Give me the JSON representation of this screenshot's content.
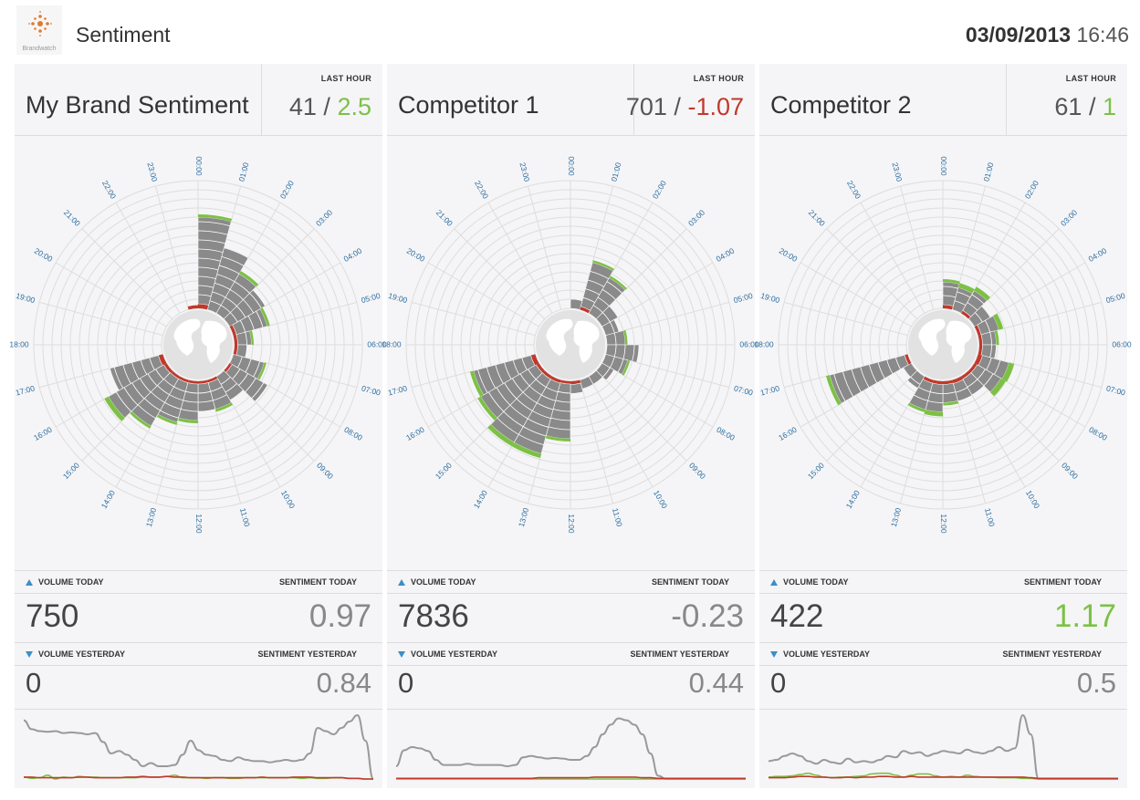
{
  "header": {
    "logo_text": "Brandwatch",
    "title": "Sentiment",
    "date": "03/09/2013",
    "time": "16:46"
  },
  "colors": {
    "positive": "#7cc144",
    "negative": "#c0392b",
    "neutral_bar": "#8a8a8a",
    "volume_line": "#999999",
    "accent": "#3a8fc9"
  },
  "hour_labels": [
    "00:00",
    "01:00",
    "02:00",
    "03:00",
    "04:00",
    "05:00",
    "06:00",
    "07:00",
    "08:00",
    "09:00",
    "10:00",
    "11:00",
    "12:00",
    "13:00",
    "14:00",
    "15:00",
    "16:00",
    "17:00",
    "18:00",
    "19:00",
    "20:00",
    "21:00",
    "22:00",
    "23:00"
  ],
  "panels": [
    {
      "title": "My Brand Sentiment",
      "last_hour_label": "LAST HOUR",
      "last_hour_volume": "41",
      "last_hour_sep": "/",
      "last_hour_sentiment": "2.5",
      "last_hour_sentiment_tone": "pos",
      "volume_today_label": "VOLUME TODAY",
      "sentiment_today_label": "SENTIMENT TODAY",
      "volume_today": "750",
      "sentiment_today": "0.97",
      "sentiment_today_tone": "neu",
      "volume_yesterday_label": "VOLUME YESTERDAY",
      "sentiment_yesterday_label": "SENTIMENT YESTERDAY",
      "volume_yesterday": "0",
      "sentiment_yesterday": "0.84",
      "radial": {
        "volume": [
          9.5,
          7,
          5,
          4.5,
          3.5,
          1.5,
          1,
          3.5,
          4.5,
          3,
          3,
          3,
          4,
          4.5,
          6,
          7,
          5.5,
          0,
          0,
          0,
          0,
          0,
          0,
          0
        ],
        "positive": [
          0.3,
          0,
          0.35,
          0,
          0.3,
          0.25,
          0,
          0.25,
          0,
          0,
          0.3,
          0,
          0.3,
          0.3,
          0.3,
          0.5,
          0,
          0,
          0,
          0,
          0,
          0,
          0,
          0
        ],
        "negative": [
          0.5,
          0,
          0,
          0,
          0.35,
          0.35,
          0.35,
          0,
          0.3,
          0,
          0.3,
          0.3,
          0.3,
          0.3,
          0.3,
          0.35,
          0.5,
          0,
          0,
          0,
          0,
          0,
          0,
          0.35
        ]
      },
      "sparkline": {
        "volume": [
          92,
          78,
          75,
          74,
          75,
          72,
          73,
          72,
          70,
          72,
          58,
          40,
          44,
          38,
          30,
          20,
          25,
          20,
          20,
          22,
          38,
          60,
          45,
          38,
          36,
          30,
          28,
          34,
          30,
          28,
          28,
          26,
          28,
          30,
          28,
          30,
          40,
          80,
          75,
          70,
          80,
          90,
          100,
          60,
          0
        ],
        "positive": [
          3,
          1,
          2,
          6,
          0,
          3,
          2,
          4,
          3,
          3,
          2,
          2,
          2,
          2,
          2,
          3,
          3,
          3,
          4,
          6,
          2,
          2,
          2,
          1,
          2,
          2,
          1,
          1,
          2,
          2,
          2,
          2,
          2,
          2,
          2,
          1,
          2,
          1,
          1,
          2,
          2,
          1,
          1,
          0,
          0
        ],
        "negative": [
          3,
          3,
          2,
          2,
          2,
          2,
          2,
          3,
          3,
          2,
          2,
          2,
          2,
          3,
          3,
          4,
          3,
          3,
          4,
          3,
          3,
          2,
          2,
          2,
          2,
          2,
          2,
          2,
          2,
          2,
          3,
          2,
          2,
          2,
          3,
          3,
          3,
          2,
          2,
          2,
          2,
          1,
          1,
          0,
          0
        ]
      }
    },
    {
      "title": "Competitor 1",
      "last_hour_label": "LAST HOUR",
      "last_hour_volume": "701",
      "last_hour_sep": "/",
      "last_hour_sentiment": "-1.07",
      "last_hour_sentiment_tone": "neg",
      "volume_today_label": "VOLUME TODAY",
      "sentiment_today_label": "SENTIMENT TODAY",
      "volume_today": "7836",
      "sentiment_today": "-0.23",
      "sentiment_today_tone": "neu",
      "volume_yesterday_label": "VOLUME YESTERDAY",
      "sentiment_yesterday_label": "SENTIMENT YESTERDAY",
      "volume_yesterday": "0",
      "sentiment_yesterday": "0.44",
      "radial": {
        "volume": [
          1,
          5,
          4.5,
          2,
          1.5,
          2,
          3.5,
          2.5,
          1.5,
          1,
          1,
          1,
          6,
          8,
          8,
          7,
          6.5,
          0,
          0,
          0,
          0,
          0,
          0,
          0
        ],
        "positive": [
          0,
          0.25,
          0.25,
          0,
          0,
          0.25,
          0,
          0.25,
          0,
          0,
          0,
          0,
          0.3,
          0.5,
          0.5,
          0.4,
          0.4,
          0,
          0,
          0,
          0,
          0,
          0,
          0
        ],
        "negative": [
          0,
          0.35,
          0,
          0,
          0,
          0,
          0,
          0,
          0,
          0,
          0,
          0.35,
          0.3,
          0.35,
          0.35,
          0.35,
          0.5,
          0,
          0,
          0,
          0,
          0,
          0,
          0
        ]
      },
      "sparkline": {
        "volume": [
          20,
          45,
          50,
          48,
          44,
          30,
          22,
          22,
          22,
          24,
          22,
          22,
          22,
          22,
          20,
          22,
          34,
          36,
          34,
          32,
          33,
          32,
          30,
          30,
          36,
          50,
          70,
          85,
          95,
          92,
          85,
          70,
          40,
          5,
          0,
          0,
          0,
          0,
          0,
          0,
          0,
          0,
          0,
          0,
          0
        ],
        "positive": [
          0,
          0,
          0,
          0,
          0,
          0,
          0,
          0,
          0,
          0,
          0,
          0,
          0,
          0,
          0,
          0,
          0,
          0,
          0,
          0,
          0,
          0,
          0,
          0,
          0,
          0,
          0,
          0,
          0,
          0,
          0,
          0,
          0,
          0,
          0,
          0,
          0,
          0,
          0,
          0,
          0,
          0,
          0,
          0,
          0
        ],
        "negative": [
          1,
          1,
          1,
          1,
          1,
          1,
          1,
          1,
          1,
          1,
          1,
          1,
          1,
          1,
          1,
          1,
          1,
          1,
          2,
          2,
          2,
          2,
          2,
          2,
          2,
          3,
          3,
          3,
          3,
          3,
          3,
          2,
          2,
          1,
          1,
          1,
          1,
          1,
          1,
          1,
          1,
          1,
          1,
          1,
          1
        ]
      }
    },
    {
      "title": "Competitor 2",
      "last_hour_label": "LAST HOUR",
      "last_hour_volume": "61",
      "last_hour_sep": "/",
      "last_hour_sentiment": "1",
      "last_hour_sentiment_tone": "pos",
      "volume_today_label": "VOLUME TODAY",
      "sentiment_today_label": "SENTIMENT TODAY",
      "volume_today": "422",
      "sentiment_today": "1.17",
      "sentiment_today_tone": "pos",
      "volume_yesterday_label": "VOLUME YESTERDAY",
      "sentiment_yesterday_label": "SENTIMENT YESTERDAY",
      "volume_yesterday": "0",
      "sentiment_yesterday": "0.5",
      "radial": {
        "volume": [
          2.5,
          2.5,
          2.5,
          2,
          2,
          1.5,
          1.5,
          3,
          3,
          2,
          2,
          2,
          3,
          3,
          1.5,
          1,
          8.5,
          0,
          0,
          0,
          0,
          0,
          0,
          0
        ],
        "positive": [
          0.3,
          0.5,
          0.5,
          0,
          0.5,
          0.3,
          0,
          0.6,
          0.6,
          0,
          0,
          0.3,
          0.5,
          0.3,
          0,
          0,
          0.4,
          0,
          0,
          0,
          0,
          0,
          0,
          0
        ],
        "negative": [
          0.4,
          0,
          0.35,
          0,
          0.35,
          0.35,
          0.35,
          0.5,
          0.35,
          0.35,
          0.4,
          0.35,
          0.35,
          0.35,
          0,
          0,
          0.35,
          0,
          0,
          0,
          0,
          0,
          0,
          0
        ]
      },
      "sparkline": {
        "volume": [
          28,
          30,
          36,
          40,
          36,
          28,
          24,
          30,
          26,
          24,
          32,
          26,
          28,
          26,
          30,
          36,
          34,
          44,
          40,
          42,
          36,
          40,
          44,
          42,
          40,
          46,
          42,
          40,
          44,
          50,
          44,
          48,
          100,
          70,
          0,
          0,
          0,
          0,
          0,
          0,
          0,
          0,
          0,
          0,
          0
        ],
        "positive": [
          3,
          4,
          4,
          5,
          7,
          9,
          6,
          3,
          2,
          3,
          3,
          4,
          5,
          8,
          9,
          9,
          6,
          3,
          6,
          8,
          8,
          5,
          3,
          4,
          3,
          6,
          4,
          3,
          3,
          2,
          2,
          2,
          1,
          1,
          0,
          0,
          0,
          0,
          0,
          0,
          0,
          0,
          0,
          0,
          0
        ],
        "negative": [
          2,
          2,
          2,
          3,
          4,
          4,
          3,
          3,
          2,
          2,
          3,
          2,
          3,
          3,
          4,
          4,
          3,
          3,
          4,
          3,
          3,
          3,
          3,
          3,
          3,
          3,
          3,
          3,
          3,
          3,
          3,
          3,
          3,
          2,
          1,
          1,
          1,
          1,
          1,
          1,
          1,
          1,
          1,
          1,
          1
        ]
      }
    }
  ]
}
